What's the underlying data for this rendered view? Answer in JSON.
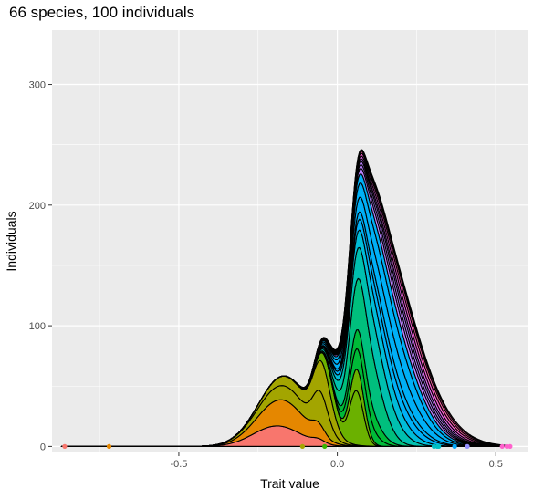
{
  "chart_data": {
    "type": "area",
    "title": "66 species, 100 individuals",
    "xlabel": "Trait value",
    "ylabel": "Individuals",
    "xlim": [
      -0.9,
      0.6
    ],
    "ylim": [
      -5,
      345
    ],
    "x_ticks": [
      {
        "value": -0.5,
        "label": "-0.5"
      },
      {
        "value": 0.0,
        "label": "0.0"
      },
      {
        "value": 0.5,
        "label": "0.5"
      }
    ],
    "y_ticks": [
      {
        "value": 0,
        "label": "0"
      },
      {
        "value": 100,
        "label": "100"
      },
      {
        "value": 200,
        "label": "200"
      },
      {
        "value": 300,
        "label": "300"
      }
    ],
    "grid": true,
    "stacked": true,
    "curve_x_range": [
      -0.87,
      0.54
    ],
    "species_layers": [
      {
        "peak_trait": -0.86,
        "color": "#F8766D",
        "components": [
          {
            "mu": -0.19,
            "sigma": 0.075,
            "amp": 17
          },
          {
            "mu": -0.06,
            "sigma": 0.02,
            "amp": 3
          }
        ]
      },
      {
        "peak_trait": -0.72,
        "color": "#E58700",
        "components": [
          {
            "mu": -0.17,
            "sigma": 0.075,
            "amp": 22
          },
          {
            "mu": -0.06,
            "sigma": 0.02,
            "amp": 6
          }
        ]
      },
      {
        "peak_trait": -0.11,
        "color": "#A3A500",
        "components": [
          {
            "mu": -0.16,
            "sigma": 0.085,
            "amp": 12
          },
          {
            "mu": -0.05,
            "sigma": 0.025,
            "amp": 22
          }
        ]
      },
      {
        "peak_trait": -0.11,
        "color": "#A3A500",
        "components": [
          {
            "mu": -0.13,
            "sigma": 0.08,
            "amp": 9
          },
          {
            "mu": -0.04,
            "sigma": 0.03,
            "amp": 22
          }
        ]
      },
      {
        "peak_trait": -0.04,
        "color": "#6BB100",
        "components": [
          {
            "mu": 0.06,
            "sigma": 0.022,
            "amp": 45
          },
          {
            "mu": -0.02,
            "sigma": 0.025,
            "amp": 15
          }
        ]
      },
      {
        "peak_trait": -0.04,
        "color": "#6BB100",
        "components": [
          {
            "mu": 0.065,
            "sigma": 0.025,
            "amp": 18
          }
        ]
      },
      {
        "peak_trait": 0.0,
        "color": "#00BA38",
        "components": [
          {
            "mu": 0.075,
            "sigma": 0.04,
            "amp": 18
          }
        ]
      },
      {
        "peak_trait": 0.0,
        "color": "#00BA38",
        "components": [
          {
            "mu": 0.085,
            "sigma": 0.045,
            "amp": 18
          }
        ]
      },
      {
        "peak_trait": 0.02,
        "color": "#00BF7D",
        "components": [
          {
            "mu": 0.09,
            "sigma": 0.05,
            "amp": 48
          }
        ]
      },
      {
        "peak_trait": 0.05,
        "color": "#00C0AF",
        "components": [
          {
            "mu": 0.11,
            "sigma": 0.065,
            "amp": 32
          }
        ]
      },
      {
        "peak_trait": 0.1,
        "color": "#00BCD8",
        "components": [
          {
            "mu": 0.13,
            "sigma": 0.075,
            "amp": 20
          }
        ]
      },
      {
        "peak_trait": 0.15,
        "color": "#00B0F6",
        "components": [
          {
            "mu": 0.15,
            "sigma": 0.085,
            "amp": 14
          }
        ]
      },
      {
        "peak_trait": 0.2,
        "color": "#00B0F6",
        "components": [
          {
            "mu": 0.155,
            "sigma": 0.085,
            "amp": 10
          }
        ]
      },
      {
        "peak_trait": 0.31,
        "color": "#00B0F6",
        "components": [
          {
            "mu": 0.16,
            "sigma": 0.09,
            "amp": 20
          }
        ]
      },
      {
        "peak_trait": 0.32,
        "color": "#00B0F6",
        "components": [
          {
            "mu": 0.165,
            "sigma": 0.09,
            "amp": 20
          }
        ]
      },
      {
        "peak_trait": 0.37,
        "color": "#00B0F6",
        "components": [
          {
            "mu": 0.17,
            "sigma": 0.1,
            "amp": 12
          }
        ]
      },
      {
        "peak_trait": 0.41,
        "color": "#B983FF",
        "components": [
          {
            "mu": 0.18,
            "sigma": 0.1,
            "amp": 8
          }
        ]
      },
      {
        "peak_trait": 0.41,
        "color": "#B983FF",
        "components": [
          {
            "mu": 0.19,
            "sigma": 0.1,
            "amp": 6
          }
        ]
      },
      {
        "peak_trait": 0.42,
        "color": "#B983FF",
        "components": [
          {
            "mu": 0.2,
            "sigma": 0.1,
            "amp": 6
          }
        ]
      },
      {
        "peak_trait": 0.44,
        "color": "#B983FF",
        "components": [
          {
            "mu": 0.21,
            "sigma": 0.105,
            "amp": 5
          }
        ]
      },
      {
        "peak_trait": 0.47,
        "color": "#E76BF3",
        "components": [
          {
            "mu": 0.22,
            "sigma": 0.105,
            "amp": 6
          }
        ]
      },
      {
        "peak_trait": 0.5,
        "color": "#FD61D1",
        "components": [
          {
            "mu": 0.23,
            "sigma": 0.11,
            "amp": 6
          }
        ]
      },
      {
        "peak_trait": 0.52,
        "color": "#FF67A4",
        "components": [
          {
            "mu": 0.24,
            "sigma": 0.11,
            "amp": 5
          }
        ]
      },
      {
        "peak_trait": 0.53,
        "color": "#FF67A4",
        "components": [
          {
            "mu": 0.26,
            "sigma": 0.12,
            "amp": 3
          }
        ]
      },
      {
        "peak_trait": 0.54,
        "color": "#FF67A4",
        "components": [
          {
            "mu": 0.28,
            "sigma": 0.12,
            "amp": 2
          }
        ]
      }
    ],
    "peak_points": [
      {
        "x": -0.86,
        "color": "#F8766D"
      },
      {
        "x": -0.72,
        "color": "#E58700"
      },
      {
        "x": -0.11,
        "color": "#A3A500"
      },
      {
        "x": -0.04,
        "color": "#39B600"
      },
      {
        "x": 0.305,
        "color": "#00BFC4"
      },
      {
        "x": 0.315,
        "color": "#00BFC4"
      },
      {
        "x": 0.32,
        "color": "#00BFC4"
      },
      {
        "x": 0.37,
        "color": "#00A9FF"
      },
      {
        "x": 0.41,
        "color": "#9590FF"
      },
      {
        "x": 0.52,
        "color": "#FF61CC"
      },
      {
        "x": 0.535,
        "color": "#FF61CC"
      },
      {
        "x": 0.545,
        "color": "#FF61CC"
      }
    ]
  }
}
